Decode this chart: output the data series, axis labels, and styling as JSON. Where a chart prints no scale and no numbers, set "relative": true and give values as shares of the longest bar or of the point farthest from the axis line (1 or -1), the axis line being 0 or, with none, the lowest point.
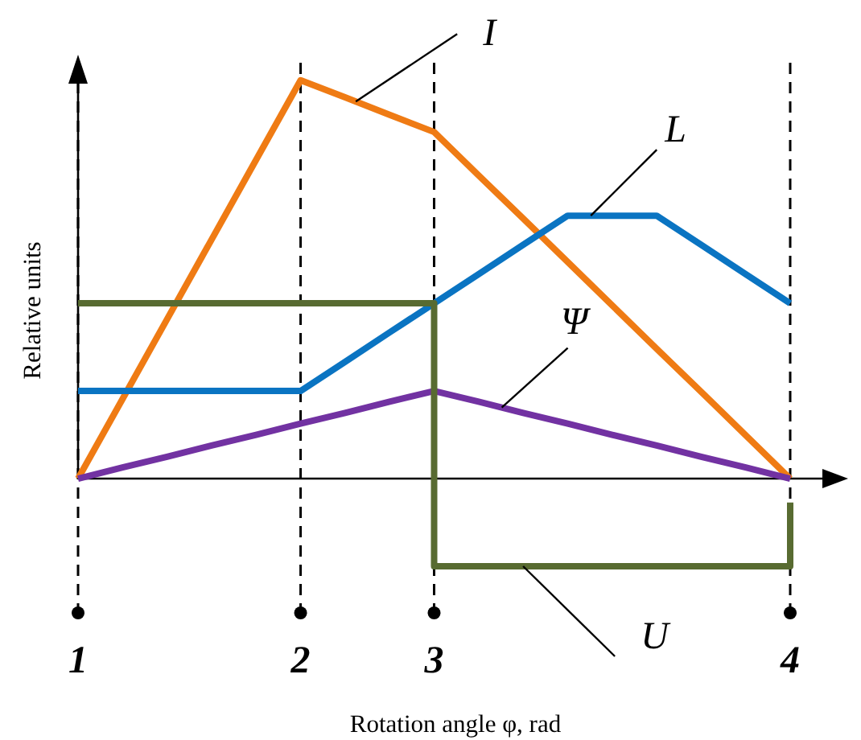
{
  "chart_data": {
    "type": "line",
    "relative": true,
    "xlabel": "Rotation angle φ, rad",
    "ylabel": "Relative units",
    "categories": [
      "1",
      null,
      null,
      null,
      null,
      "2",
      null,
      null,
      "3",
      null,
      null,
      null,
      null,
      null,
      null,
      null,
      "4"
    ],
    "grid": "x",
    "series": [
      {
        "name": "I",
        "color": "#ef7b14",
        "values": [
          0,
          0.2,
          0.4,
          0.6,
          0.8,
          1,
          0.957,
          0.913,
          0.87,
          0.761,
          0.653,
          0.544,
          0.435,
          0.326,
          0.218,
          0.109,
          0
        ]
      },
      {
        "name": "L",
        "color": "#0a74c2",
        "values": [
          0.22,
          0.22,
          0.22,
          0.22,
          0.22,
          0.22,
          0.293,
          0.367,
          0.44,
          0.513,
          0.587,
          0.66,
          0.66,
          0.66,
          0.587,
          0.513,
          0.44
        ]
      },
      {
        "name": "Ψ",
        "color": "#7232a2",
        "values": [
          0,
          0.028,
          0.055,
          0.083,
          0.11,
          0.138,
          0.165,
          0.193,
          0.22,
          0.193,
          0.165,
          0.138,
          0.11,
          0.083,
          0.055,
          0.028,
          0
        ]
      },
      {
        "name": "U",
        "type": "step",
        "color": "#586b31",
        "values": [
          0.44,
          0.44,
          0.44,
          0.44,
          0.44,
          0.44,
          0.44,
          0.44,
          -0.22,
          -0.22,
          -0.22,
          -0.22,
          -0.22,
          -0.22,
          -0.22,
          -0.22,
          -0.06
        ]
      }
    ]
  }
}
